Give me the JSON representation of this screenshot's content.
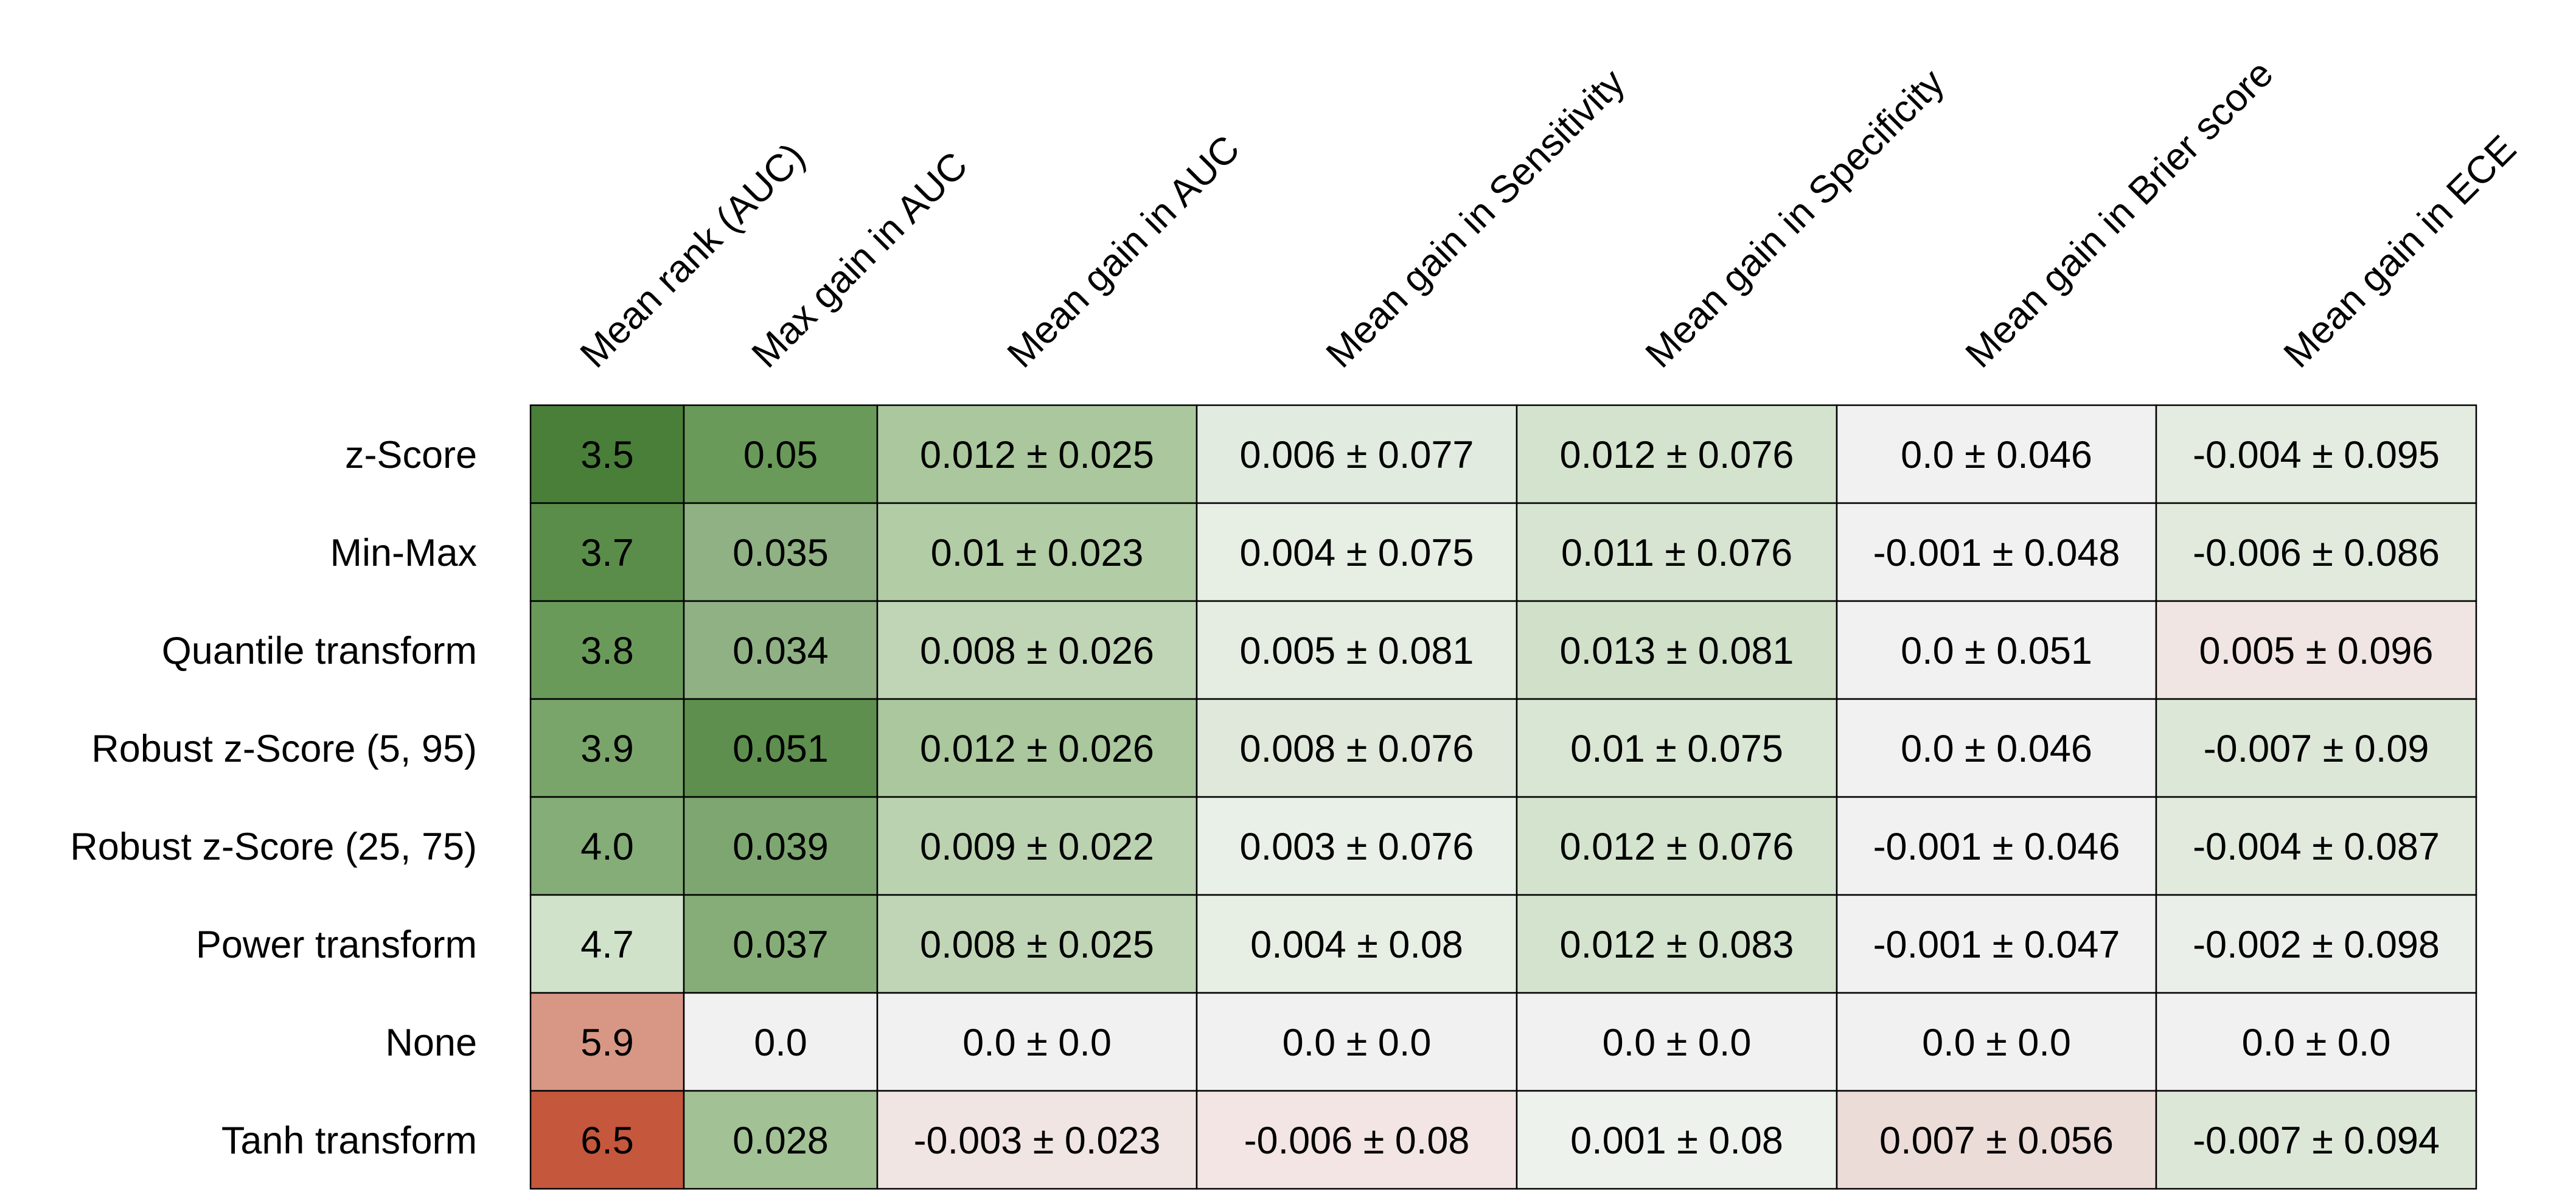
{
  "chart_data": {
    "type": "table",
    "columns": [
      "Mean rank (AUC)",
      "Max gain in AUC",
      "Mean gain in AUC",
      "Mean gain in Sensitivity",
      "Mean gain in Specificity",
      "Mean gain in Brier score",
      "Mean gain in ECE"
    ],
    "rows": [
      "z-Score",
      "Min-Max",
      "Quantile transform",
      "Robust z-Score (5, 95)",
      "Robust z-Score (25, 75)",
      "Power transform",
      "None",
      "Tanh transform"
    ],
    "cells": [
      [
        "3.5",
        "0.05",
        "0.012 ± 0.025",
        "0.006 ± 0.077",
        "0.012 ± 0.076",
        "0.0 ± 0.046",
        "-0.004 ± 0.095"
      ],
      [
        "3.7",
        "0.035",
        "0.01 ± 0.023",
        "0.004 ± 0.075",
        "0.011 ± 0.076",
        "-0.001 ± 0.048",
        "-0.006 ± 0.086"
      ],
      [
        "3.8",
        "0.034",
        "0.008 ± 0.026",
        "0.005 ± 0.081",
        "0.013 ± 0.081",
        "0.0 ± 0.051",
        "0.005 ± 0.096"
      ],
      [
        "3.9",
        "0.051",
        "0.012 ± 0.026",
        "0.008 ± 0.076",
        "0.01 ± 0.075",
        "0.0 ± 0.046",
        "-0.007 ± 0.09"
      ],
      [
        "4.0",
        "0.039",
        "0.009 ± 0.022",
        "0.003 ± 0.076",
        "0.012 ± 0.076",
        "-0.001 ± 0.046",
        "-0.004 ± 0.087"
      ],
      [
        "4.7",
        "0.037",
        "0.008 ± 0.025",
        "0.004 ± 0.08",
        "0.012 ± 0.083",
        "-0.001 ± 0.047",
        "-0.002 ± 0.098"
      ],
      [
        "5.9",
        "0.0",
        "0.0 ± 0.0",
        "0.0 ± 0.0",
        "0.0 ± 0.0",
        "0.0 ± 0.0",
        "0.0 ± 0.0"
      ],
      [
        "6.5",
        "0.028",
        "-0.003 ± 0.023",
        "-0.006 ± 0.08",
        "0.001 ± 0.08",
        "0.007 ± 0.056",
        "-0.007 ± 0.094"
      ]
    ],
    "cell_colors": [
      [
        "#4a7f3a",
        "#6a9a5a",
        "#aac79d",
        "#e2ebdf",
        "#d4e3cd",
        "#f1f1f1",
        "#e4ebe0"
      ],
      [
        "#5b8d4a",
        "#8fb183",
        "#b2cca6",
        "#e7eee4",
        "#d7e4d1",
        "#f1f1f1",
        "#e1eadd"
      ],
      [
        "#6a9a5a",
        "#90b184",
        "#c0d5b6",
        "#e5ede2",
        "#d0e0c9",
        "#f1f1f1",
        "#f0e5e3"
      ],
      [
        "#79a56a",
        "#5e8f4e",
        "#aac79d",
        "#dfe8da",
        "#d9e6d3",
        "#f1f1f1",
        "#dde7d8"
      ],
      [
        "#85ad77",
        "#7ea671",
        "#bbd2b1",
        "#e9f0e7",
        "#d4e3cd",
        "#f1f1f1",
        "#e1eadd"
      ],
      [
        "#d1e2cb",
        "#86ad78",
        "#c0d5b6",
        "#e7eee4",
        "#d4e3cd",
        "#f1f1f1",
        "#ebefe9"
      ],
      [
        "#d89785",
        "#f1f1f1",
        "#f1f1f1",
        "#f1f1f1",
        "#f1f1f1",
        "#f1f1f1",
        "#f1f1f1"
      ],
      [
        "#c4573c",
        "#a2c195",
        "#f1e5e3",
        "#f2e5e3",
        "#eef2ec",
        "#ecdcd8",
        "#dde7d8"
      ]
    ],
    "grid": true,
    "legend": "none"
  }
}
